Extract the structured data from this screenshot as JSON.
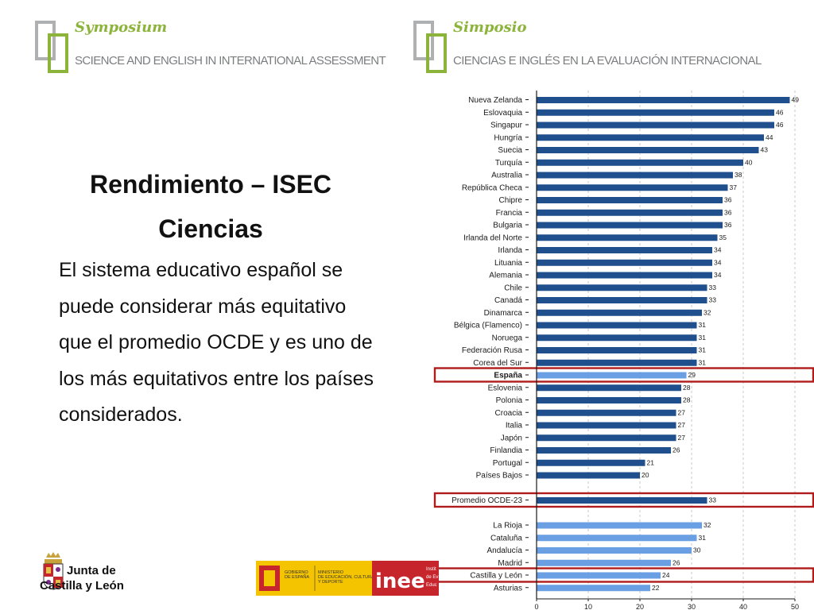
{
  "header": {
    "left_brand": "Symposium",
    "left_subtitle": "SCIENCE AND ENGLISH IN INTERNATIONAL ASSESSMENT",
    "right_brand": "Simposio",
    "right_subtitle": "CIENCIAS E INGLÉS EN LA  EVALUACIÓN INTERNACIONAL"
  },
  "slide": {
    "title_line1": "Rendimiento – ISEC",
    "title_line2": "Ciencias",
    "body": "El sistema educativo español se puede considerar más equitativo que el promedio OCDE y es uno de los más equitativos entre los países considerados."
  },
  "footer": {
    "jcyl_line1": "Junta de",
    "jcyl_line2": "Castilla y León",
    "gob_line1": "GOBIERNO",
    "gob_line2": "DE ESPAÑA",
    "min_line1": "MINISTERIO",
    "min_line2": "DE EDUCACIÓN, CULTURA",
    "min_line3": "Y DEPORTE",
    "inee_logo": "inee",
    "inee_text1": "Instit",
    "inee_text2": "de Ev",
    "inee_text3": "Educ"
  },
  "colors": {
    "dark_bar": "#1f4f8c",
    "light_bar": "#6a9fe4",
    "highlight": "#b01c1c",
    "accent_green": "#8cb33a",
    "gray": "#aeb0b2"
  },
  "chart_data": {
    "type": "bar",
    "orientation": "horizontal",
    "xlim": [
      0,
      50
    ],
    "xticks": [
      0,
      10,
      20,
      30,
      40,
      50
    ],
    "grid": true,
    "groups": [
      {
        "style": "dark",
        "items": [
          {
            "label": "Nueva Zelanda",
            "value": 49
          },
          {
            "label": "Eslovaquia",
            "value": 46
          },
          {
            "label": "Singapur",
            "value": 46
          },
          {
            "label": "Hungría",
            "value": 44
          },
          {
            "label": "Suecia",
            "value": 43
          },
          {
            "label": "Turquía",
            "value": 40
          },
          {
            "label": "Australia",
            "value": 38
          },
          {
            "label": "República Checa",
            "value": 37
          },
          {
            "label": "Chipre",
            "value": 36
          },
          {
            "label": "Francia",
            "value": 36
          },
          {
            "label": "Bulgaria",
            "value": 36
          },
          {
            "label": "Irlanda del Norte",
            "value": 35
          },
          {
            "label": "Irlanda",
            "value": 34
          },
          {
            "label": "Lituania",
            "value": 34
          },
          {
            "label": "Alemania",
            "value": 34
          },
          {
            "label": "Chile",
            "value": 33
          },
          {
            "label": "Canadá",
            "value": 33
          },
          {
            "label": "Dinamarca",
            "value": 32
          },
          {
            "label": "Bélgica (Flamenco)",
            "value": 31
          },
          {
            "label": "Noruega",
            "value": 31
          },
          {
            "label": "Federación Rusa",
            "value": 31
          },
          {
            "label": "Corea del Sur",
            "value": 31
          },
          {
            "label": "España",
            "value": 29,
            "style": "light",
            "bold": true,
            "highlight": true
          },
          {
            "label": "Eslovenia",
            "value": 28
          },
          {
            "label": "Polonia",
            "value": 28
          },
          {
            "label": "Croacia",
            "value": 27
          },
          {
            "label": "Italia",
            "value": 27
          },
          {
            "label": "Japón",
            "value": 27
          },
          {
            "label": "Finlandia",
            "value": 26
          },
          {
            "label": "Portugal",
            "value": 21
          },
          {
            "label": "Países Bajos",
            "value": 20
          }
        ]
      },
      {
        "style": "dark",
        "items": [
          {
            "label": "Promedio OCDE-23",
            "value": 33,
            "highlight": true
          }
        ]
      },
      {
        "style": "light",
        "items": [
          {
            "label": "La Rioja",
            "value": 32
          },
          {
            "label": "Cataluña",
            "value": 31
          },
          {
            "label": "Andalucía",
            "value": 30
          },
          {
            "label": "Madrid",
            "value": 26
          },
          {
            "label": "Castilla y León",
            "value": 24,
            "highlight": true
          },
          {
            "label": "Asturias",
            "value": 22
          }
        ]
      }
    ]
  }
}
